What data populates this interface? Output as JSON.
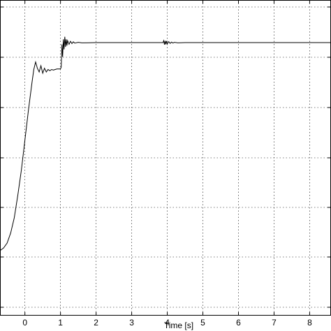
{
  "chart_data": {
    "type": "line",
    "title": "",
    "xlabel": "Time [s]",
    "ylabel": "",
    "xlim": [
      -0.7,
      8.6
    ],
    "xticks": [
      0,
      1,
      2,
      3,
      4,
      5,
      6,
      7,
      8
    ],
    "xtick_labels": [
      "0",
      "1",
      "2",
      "3",
      "4",
      "5",
      "6",
      "7",
      "8"
    ],
    "yticks": [],
    "grid": true,
    "grid_style": "dotted",
    "line_color": "#000000",
    "series": [
      {
        "name": "",
        "points": [
          [
            -0.7,
            0.02
          ],
          [
            -0.6,
            0.03
          ],
          [
            -0.5,
            0.05
          ],
          [
            -0.4,
            0.09
          ],
          [
            -0.3,
            0.15
          ],
          [
            -0.2,
            0.24
          ],
          [
            -0.1,
            0.34
          ],
          [
            0.0,
            0.46
          ],
          [
            0.1,
            0.58
          ],
          [
            0.2,
            0.69
          ],
          [
            0.25,
            0.74
          ],
          [
            0.3,
            0.77
          ],
          [
            0.35,
            0.745
          ],
          [
            0.4,
            0.73
          ],
          [
            0.45,
            0.755
          ],
          [
            0.5,
            0.725
          ],
          [
            0.55,
            0.745
          ],
          [
            0.6,
            0.73
          ],
          [
            0.65,
            0.74
          ],
          [
            0.7,
            0.735
          ],
          [
            0.75,
            0.74
          ],
          [
            0.8,
            0.738
          ],
          [
            0.85,
            0.74
          ],
          [
            0.9,
            0.742
          ],
          [
            1.0,
            0.742
          ],
          [
            1.02,
            0.75
          ],
          [
            1.04,
            0.84
          ],
          [
            1.06,
            0.79
          ],
          [
            1.08,
            0.86
          ],
          [
            1.1,
            0.82
          ],
          [
            1.12,
            0.87
          ],
          [
            1.14,
            0.83
          ],
          [
            1.16,
            0.86
          ],
          [
            1.18,
            0.835
          ],
          [
            1.2,
            0.855
          ],
          [
            1.24,
            0.84
          ],
          [
            1.28,
            0.852
          ],
          [
            1.32,
            0.843
          ],
          [
            1.36,
            0.85
          ],
          [
            1.4,
            0.845
          ],
          [
            1.5,
            0.848
          ],
          [
            1.6,
            0.846
          ],
          [
            2.0,
            0.847
          ],
          [
            3.0,
            0.847
          ],
          [
            3.88,
            0.847
          ],
          [
            3.9,
            0.855
          ],
          [
            3.92,
            0.839
          ],
          [
            3.94,
            0.854
          ],
          [
            3.96,
            0.84
          ],
          [
            3.98,
            0.853
          ],
          [
            4.0,
            0.842
          ],
          [
            4.04,
            0.851
          ],
          [
            4.08,
            0.844
          ],
          [
            4.12,
            0.849
          ],
          [
            4.16,
            0.845
          ],
          [
            4.2,
            0.848
          ],
          [
            4.3,
            0.846
          ],
          [
            4.5,
            0.847
          ],
          [
            6.0,
            0.847
          ],
          [
            8.6,
            0.847
          ]
        ]
      }
    ]
  }
}
